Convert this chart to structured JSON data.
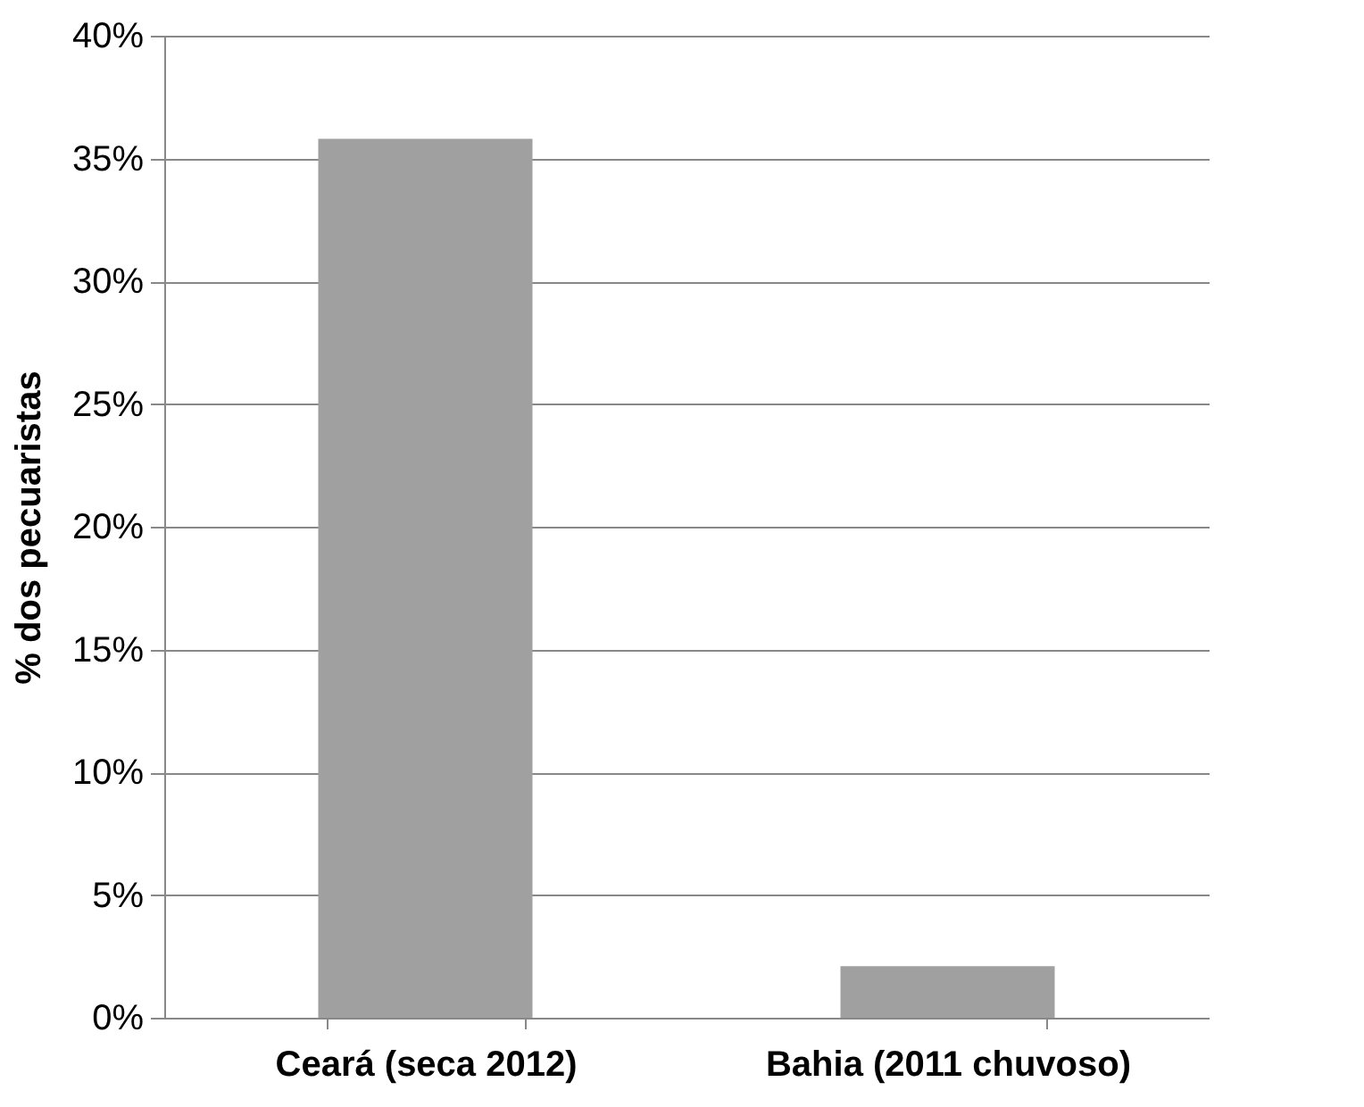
{
  "chart_data": {
    "type": "bar",
    "ylabel": "% dos pecuaristas",
    "categories": [
      "Ceará (seca 2012)",
      "Bahia (2011 chuvoso)"
    ],
    "values": [
      35.8,
      2.1
    ],
    "color": "#a0a0a0",
    "ylim": [
      0,
      40
    ],
    "yticks": [
      {
        "value": 0,
        "label": "0%"
      },
      {
        "value": 5,
        "label": "5%"
      },
      {
        "value": 10,
        "label": "10%"
      },
      {
        "value": 15,
        "label": "15%"
      },
      {
        "value": 20,
        "label": "20%"
      },
      {
        "value": 25,
        "label": "25%"
      },
      {
        "value": 30,
        "label": "30%"
      },
      {
        "value": 35,
        "label": "35%"
      },
      {
        "value": 40,
        "label": "40%"
      }
    ],
    "grid": "y"
  }
}
